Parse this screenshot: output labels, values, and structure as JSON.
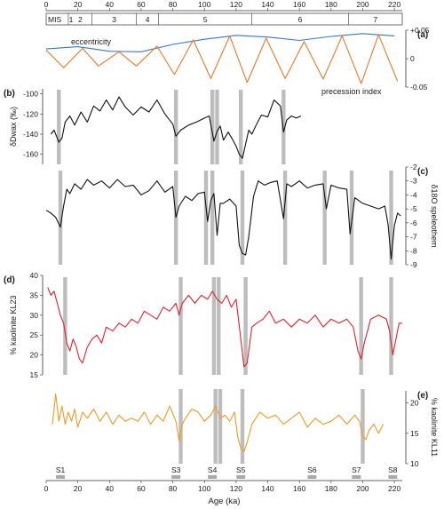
{
  "chart_data": {
    "type": "line",
    "xlabel": "Age (ka)",
    "x_ticks": [
      0,
      20,
      40,
      60,
      80,
      100,
      120,
      140,
      160,
      180,
      200,
      220
    ],
    "xlim": [
      0,
      225
    ],
    "mis": {
      "label": "MIS",
      "stages": [
        {
          "label": "1",
          "from": 0,
          "to": 14
        },
        {
          "label": "2",
          "from": 14,
          "to": 29
        },
        {
          "label": "3",
          "from": 29,
          "to": 57
        },
        {
          "label": "4",
          "from": 57,
          "to": 71
        },
        {
          "label": "5",
          "from": 71,
          "to": 130
        },
        {
          "label": "6",
          "from": 130,
          "to": 191
        },
        {
          "label": "7",
          "from": 191,
          "to": 225
        }
      ]
    },
    "panels": [
      {
        "id": "a",
        "panel_label": "(a)",
        "ylim": [
          -0.05,
          0.05
        ],
        "y_ticks": [
          0.05,
          0,
          -0.05
        ],
        "y_tick_labels": [
          "+0.05",
          "0",
          "-0.05"
        ],
        "series": [
          {
            "name": "eccentricity",
            "color": "#3a75c4",
            "x": [
              0,
              20,
              40,
              60,
              80,
              100,
              120,
              140,
              160,
              180,
              200,
              220
            ],
            "values": [
              0.017,
              0.021,
              0.013,
              0.012,
              0.025,
              0.034,
              0.041,
              0.038,
              0.032,
              0.039,
              0.044,
              0.04
            ]
          },
          {
            "name": "precession index",
            "color": "#e8782c",
            "x": [
              0,
              11,
              23,
              33,
              46,
              57,
              70,
              81,
              93,
              104,
              116,
              127,
              139,
              151,
              163,
              175,
              187,
              199,
              210,
              222
            ],
            "values": [
              0.015,
              -0.016,
              0.018,
              -0.013,
              0.012,
              -0.013,
              0.022,
              -0.028,
              0.033,
              -0.035,
              0.04,
              -0.042,
              0.036,
              -0.035,
              0.03,
              -0.036,
              0.04,
              -0.044,
              0.042,
              -0.04
            ]
          }
        ]
      },
      {
        "id": "b",
        "panel_label": "(b)",
        "ylabel": "δDwax (‰)",
        "ylim": [
          -170,
          -95
        ],
        "y_ticks": [
          -100,
          -120,
          -140,
          -160
        ],
        "color": "#111111",
        "x": [
          3,
          5,
          8,
          10,
          12,
          15,
          18,
          22,
          26,
          30,
          34,
          38,
          42,
          46,
          50,
          55,
          60,
          65,
          70,
          75,
          80,
          82,
          85,
          90,
          95,
          100,
          103,
          106,
          108,
          110,
          112,
          115,
          118,
          120,
          122,
          124,
          126,
          128,
          130,
          133,
          136,
          140,
          144,
          148,
          150,
          152,
          155,
          158,
          161
        ],
        "values": [
          -140,
          -136,
          -148,
          -144,
          -128,
          -122,
          -131,
          -118,
          -128,
          -112,
          -117,
          -106,
          -116,
          -103,
          -113,
          -121,
          -113,
          -118,
          -106,
          -120,
          -130,
          -142,
          -136,
          -131,
          -128,
          -124,
          -122,
          -147,
          -137,
          -132,
          -146,
          -138,
          -146,
          -152,
          -160,
          -164,
          -150,
          -136,
          -140,
          -130,
          -121,
          -123,
          -106,
          -112,
          -138,
          -126,
          -122,
          -124,
          -122
        ]
      },
      {
        "id": "c",
        "panel_label": "(c)",
        "ylabel": "δ18O speleothem",
        "ylim": [
          -9,
          -2
        ],
        "y_ticks": [
          -2,
          -3,
          -4,
          -5,
          -6,
          -7,
          -8,
          -9
        ],
        "color": "#111111",
        "x": [
          0,
          3,
          6,
          9,
          11,
          13,
          15,
          18,
          22,
          26,
          30,
          35,
          40,
          45,
          50,
          55,
          60,
          65,
          70,
          75,
          80,
          82,
          84,
          88,
          92,
          96,
          100,
          102,
          104,
          106,
          108,
          110,
          112,
          116,
          120,
          122,
          124,
          126,
          128,
          131,
          134,
          138,
          142,
          146,
          150,
          152,
          155,
          160,
          165,
          170,
          175,
          177,
          180,
          185,
          190,
          192,
          195,
          200,
          205,
          210,
          214,
          216,
          218,
          220,
          222,
          224
        ],
        "values": [
          -5.1,
          -5.3,
          -5.6,
          -6.3,
          -4.8,
          -3.6,
          -3.9,
          -3.2,
          -3.6,
          -2.9,
          -3.3,
          -3.0,
          -3.5,
          -2.9,
          -3.4,
          -3.3,
          -4.0,
          -3.7,
          -3.0,
          -3.8,
          -3.4,
          -5.6,
          -4.8,
          -4.1,
          -4.4,
          -3.9,
          -3.8,
          -5.9,
          -4.4,
          -3.9,
          -6.9,
          -4.6,
          -4.6,
          -4.3,
          -4.8,
          -7.6,
          -8.2,
          -8.3,
          -7.0,
          -4.1,
          -3.0,
          -3.3,
          -3.1,
          -3.0,
          -5.7,
          -3.2,
          -3.4,
          -3.0,
          -3.5,
          -3.3,
          -3.2,
          -5.0,
          -3.3,
          -3.5,
          -3.6,
          -6.8,
          -4.2,
          -4.6,
          -4.8,
          -5.0,
          -4.8,
          -6.1,
          -8.6,
          -6.2,
          -5.3,
          -5.5
        ]
      },
      {
        "id": "d",
        "panel_label": "(d)",
        "ylabel": "% kaolinite KL23",
        "ylim": [
          15,
          40
        ],
        "y_ticks": [
          15,
          20,
          25,
          30,
          35,
          40
        ],
        "color": "#e0232e",
        "x": [
          1,
          3,
          5,
          7,
          9,
          11,
          13,
          15,
          17,
          19,
          21,
          23,
          26,
          29,
          32,
          35,
          38,
          42,
          46,
          50,
          54,
          58,
          62,
          66,
          70,
          74,
          78,
          82,
          84,
          86,
          90,
          94,
          98,
          102,
          105,
          108,
          111,
          114,
          117,
          120,
          123,
          125,
          127,
          130,
          133,
          137,
          141,
          145,
          150,
          155,
          160,
          165,
          170,
          175,
          180,
          185,
          190,
          194,
          197,
          199,
          201,
          205,
          210,
          215,
          217,
          219,
          221,
          223,
          225
        ],
        "values": [
          37,
          35,
          36,
          33,
          30,
          28,
          23,
          21,
          24,
          22,
          19,
          18,
          22,
          24,
          25,
          23,
          27,
          26,
          28,
          27,
          29,
          28,
          31,
          30,
          29,
          32,
          31,
          33,
          30,
          33,
          35,
          33,
          35,
          34,
          36,
          34,
          33,
          35,
          32,
          34,
          24,
          17,
          18,
          27,
          28,
          29,
          31,
          28,
          29,
          27,
          29,
          28,
          30,
          27,
          29,
          28,
          29,
          27,
          21,
          19,
          23,
          29,
          30,
          29,
          26,
          20,
          24,
          28,
          28
        ]
      },
      {
        "id": "e",
        "panel_label": "(e)",
        "ylabel": "% kaolinite KL11",
        "ylim": [
          10,
          22
        ],
        "y_ticks": [
          10,
          15,
          20
        ],
        "color": "#ef9a26",
        "x": [
          4,
          6,
          8,
          10,
          12,
          14,
          16,
          18,
          20,
          23,
          26,
          30,
          34,
          38,
          42,
          46,
          50,
          54,
          58,
          62,
          66,
          70,
          74,
          78,
          82,
          84,
          86,
          88,
          92,
          96,
          100,
          104,
          107,
          110,
          113,
          116,
          119,
          121,
          123,
          125,
          127,
          130,
          135,
          140,
          145,
          150,
          155,
          160,
          165,
          170,
          175,
          180,
          185,
          190,
          195,
          198,
          200,
          202,
          204,
          207,
          210,
          213
        ],
        "values": [
          16.5,
          21.5,
          17.0,
          19.5,
          16.5,
          18.5,
          17.0,
          19.0,
          16.0,
          18.5,
          17.5,
          19.0,
          17.0,
          18.5,
          16.5,
          18.0,
          17.0,
          17.5,
          17.0,
          18.5,
          16.5,
          18.0,
          17.0,
          19.5,
          17.0,
          13.8,
          16.5,
          17.5,
          19.0,
          18.5,
          17.0,
          18.0,
          19.5,
          17.5,
          18.0,
          17.0,
          18.5,
          14.5,
          12.5,
          12.0,
          13.5,
          16.5,
          18.5,
          17.5,
          18.0,
          16.5,
          17.5,
          18.5,
          16.0,
          17.5,
          16.5,
          17.0,
          18.0,
          16.5,
          18.0,
          17.0,
          14.5,
          14.0,
          15.5,
          16.5,
          15.0,
          16.5
        ]
      }
    ],
    "gray_bars": {
      "b": [
        8,
        82,
        105,
        108,
        123,
        150
      ],
      "c": [
        9,
        82,
        101,
        105,
        124,
        151,
        176,
        193,
        218
      ],
      "d": [
        12,
        85,
        106,
        109,
        126,
        199,
        218
      ],
      "e": [
        85,
        107,
        110,
        124,
        200
      ]
    },
    "s_markers": [
      {
        "label": "S1",
        "age": 9
      },
      {
        "label": "S3",
        "age": 82
      },
      {
        "label": "S4",
        "age": 105
      },
      {
        "label": "S5",
        "age": 123
      },
      {
        "label": "S6",
        "age": 168
      },
      {
        "label": "S7",
        "age": 196
      },
      {
        "label": "S8",
        "age": 219
      }
    ]
  }
}
